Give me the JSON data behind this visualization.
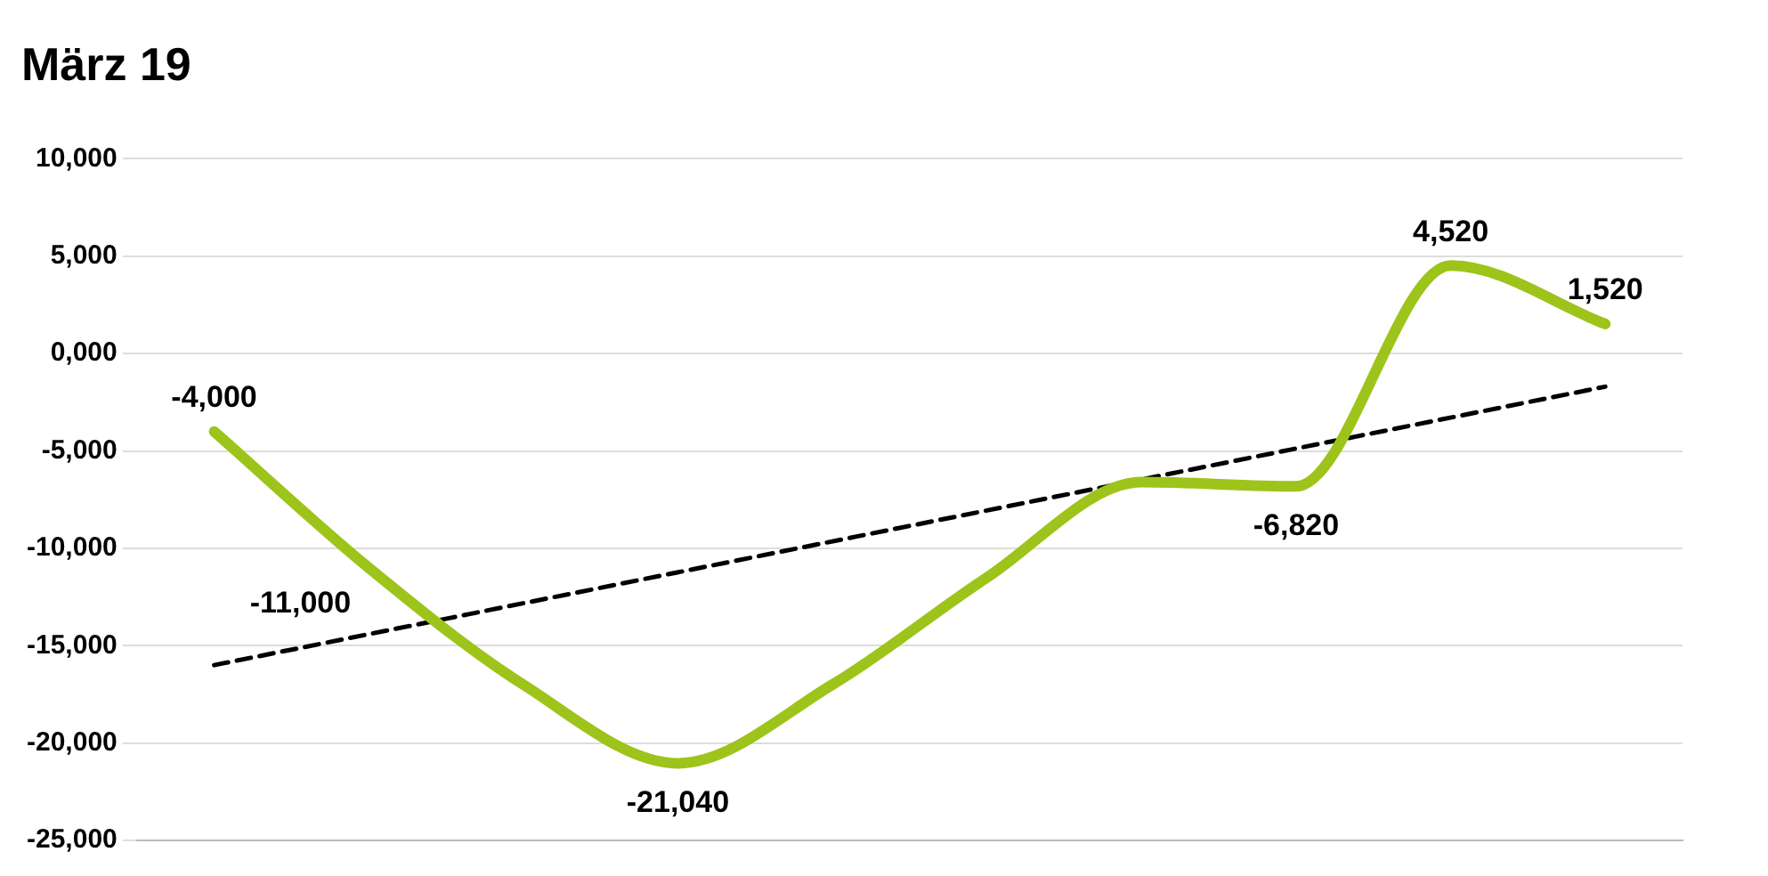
{
  "chart_data": {
    "type": "line",
    "title": "März 19",
    "categories": [
      null,
      null,
      null,
      null,
      null,
      null,
      null,
      null,
      null,
      null
    ],
    "series": [
      {
        "color": "#9dc41a",
        "values": [
          -4000,
          -11000,
          -17000,
          -21040,
          -17000,
          -11500,
          -6600,
          -6820,
          4520,
          1520
        ],
        "value_labels": [
          "-4,000",
          "-11,000",
          null,
          "-21,040",
          null,
          null,
          null,
          "-6,820",
          "4,520",
          "1,520"
        ]
      },
      {
        "color": "#000000",
        "line_style": "dashed",
        "values": [
          -16000,
          null,
          null,
          null,
          null,
          null,
          null,
          null,
          null,
          -1700
        ]
      }
    ],
    "ylim": [
      -25000,
      10000
    ],
    "yticks": [
      {
        "value": -25000,
        "label": "-25,000"
      },
      {
        "value": -20000,
        "label": "-20,000"
      },
      {
        "value": -15000,
        "label": "-15,000"
      },
      {
        "value": -10000,
        "label": "-10,000"
      },
      {
        "value": -5000,
        "label": "-5,000"
      },
      {
        "value": 0,
        "label": "0,000"
      },
      {
        "value": 5000,
        "label": "5,000"
      },
      {
        "value": 10000,
        "label": "10,000"
      }
    ],
    "grid": "y",
    "legend": false,
    "tick_labels": "y",
    "marker": "none",
    "line_style": "solid"
  }
}
